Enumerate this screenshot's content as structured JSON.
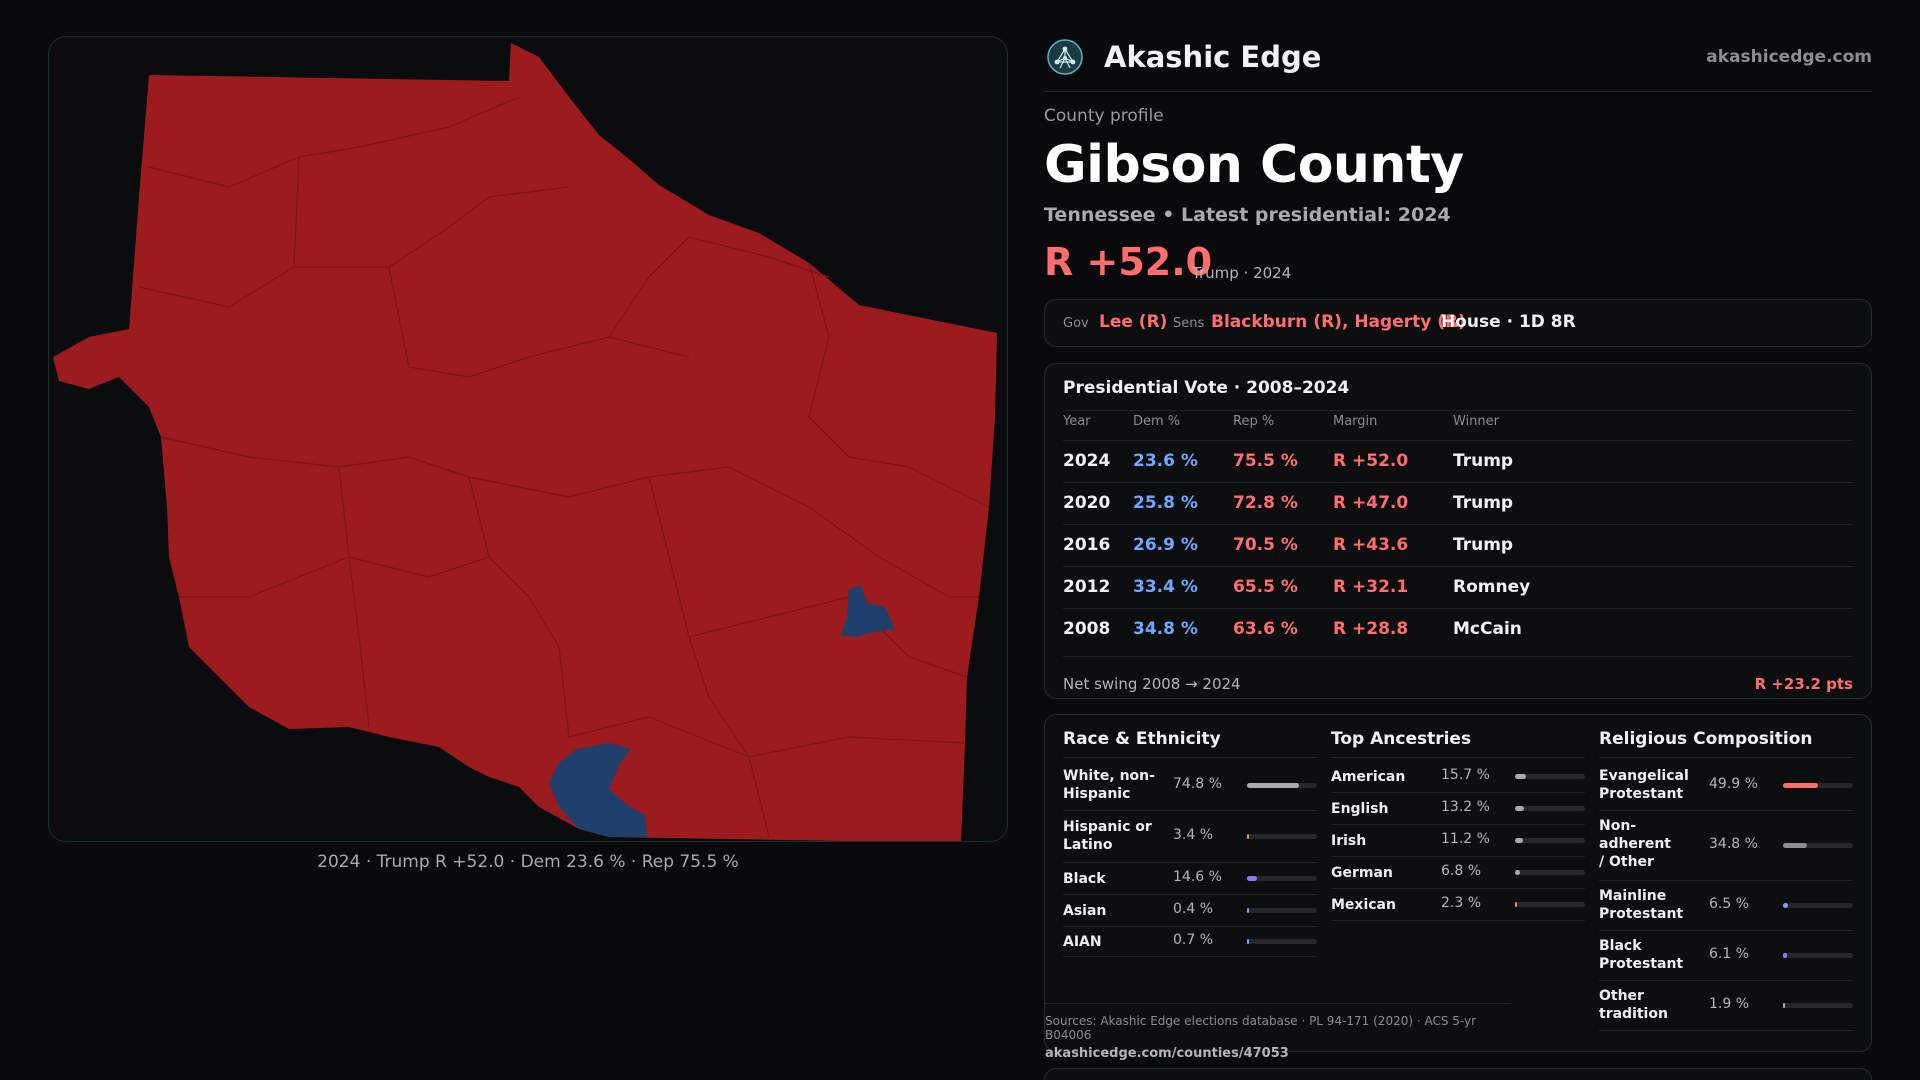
{
  "brand": {
    "name": "Akashic Edge",
    "domain": "akashicedge.com",
    "logo_icon": "network-globe-icon"
  },
  "header": {
    "kicker": "County profile",
    "title": "Gibson County",
    "subline": "Tennessee • Latest presidential: 2024",
    "margin": "R +52.0",
    "margin_note": "Trump · 2024"
  },
  "officials": {
    "gov_label": "Gov",
    "gov": "Lee (R)",
    "sens_label": "Sens",
    "sens": "Blackburn (R), Hagerty (R)",
    "house": "House · 1D 8R"
  },
  "presidential": {
    "title": "Presidential Vote · 2008–2024",
    "columns": [
      "Year",
      "Dem %",
      "Rep %",
      "Margin",
      "Winner"
    ],
    "rows": [
      {
        "year": "2024",
        "dem": "23.6 %",
        "rep": "75.5 %",
        "margin": "R +52.0",
        "winner": "Trump"
      },
      {
        "year": "2020",
        "dem": "25.8 %",
        "rep": "72.8 %",
        "margin": "R +47.0",
        "winner": "Trump"
      },
      {
        "year": "2016",
        "dem": "26.9 %",
        "rep": "70.5 %",
        "margin": "R +43.6",
        "winner": "Trump"
      },
      {
        "year": "2012",
        "dem": "33.4 %",
        "rep": "65.5 %",
        "margin": "R +32.1",
        "winner": "Romney"
      },
      {
        "year": "2008",
        "dem": "34.8 %",
        "rep": "63.6 %",
        "margin": "R +28.8",
        "winner": "McCain"
      }
    ],
    "swing_label": "Net swing 2008 → 2024",
    "swing_value": "R +23.2 pts"
  },
  "race": {
    "title": "Race & Ethnicity",
    "items": [
      {
        "label": "White, non-Hispanic",
        "pct": "74.8 %",
        "value": 74.8,
        "color": "#a9abb3"
      },
      {
        "label": "Hispanic or Latino",
        "pct": "3.4 %",
        "value": 3.4,
        "color": "#e7953a"
      },
      {
        "label": "Black",
        "pct": "14.6 %",
        "value": 14.6,
        "color": "#8b7bff"
      },
      {
        "label": "Asian",
        "pct": "0.4 %",
        "value": 0.4,
        "color": "#6ea8ff"
      },
      {
        "label": "AIAN",
        "pct": "0.7 %",
        "value": 0.7,
        "color": "#6ea8ff"
      }
    ]
  },
  "ancestry": {
    "title": "Top Ancestries",
    "items": [
      {
        "label": "American",
        "pct": "15.7 %",
        "value": 15.7,
        "color": "#a9abb3"
      },
      {
        "label": "English",
        "pct": "13.2 %",
        "value": 13.2,
        "color": "#a9abb3"
      },
      {
        "label": "Irish",
        "pct": "11.2 %",
        "value": 11.2,
        "color": "#a9abb3"
      },
      {
        "label": "German",
        "pct": "6.8 %",
        "value": 6.8,
        "color": "#a9abb3"
      },
      {
        "label": "Mexican",
        "pct": "2.3 %",
        "value": 2.3,
        "color": "#e7953a"
      }
    ]
  },
  "religion": {
    "title": "Religious Composition",
    "items": [
      {
        "label": "Evangelical Protestant",
        "pct": "49.9 %",
        "value": 49.9,
        "color": "#ff6d6d"
      },
      {
        "label": "Non-adherent / Other",
        "pct": "34.8 %",
        "value": 34.8,
        "color": "#8d8f97"
      },
      {
        "label": "Mainline Protestant",
        "pct": "6.5 %",
        "value": 6.5,
        "color": "#6ea8ff"
      },
      {
        "label": "Black Protestant",
        "pct": "6.1 %",
        "value": 6.1,
        "color": "#8b7bff"
      },
      {
        "label": "Other tradition",
        "pct": "1.9 %",
        "value": 1.9,
        "color": "#a9abb3"
      }
    ]
  },
  "sources": {
    "text": "Sources: Akashic Edge elections database · PL 94-171 (2020) · ACS 5-yr B04006",
    "url": "akashicedge.com/counties/47053"
  },
  "map": {
    "caption": "2024 · Trump R +52.0 · Dem 23.6 % · Rep 75.5 %",
    "rep_color": "#9b1b1f",
    "dem_color": "#1f3f6d"
  }
}
